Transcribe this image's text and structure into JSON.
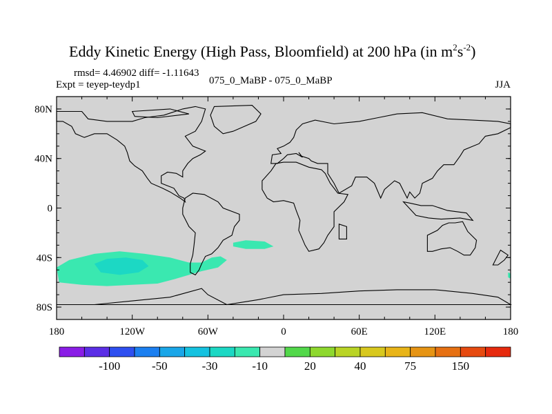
{
  "chart_data": {
    "type": "heatmap",
    "title": "Eddy Kinetic Energy (High Pass, Bloomfield) at 200 hPa (in m",
    "title_units": {
      "base1": "m",
      "exp1": "2",
      "base2": "s",
      "exp2": "-2",
      "close": ")"
    },
    "stats_line": "rmsd= 4.46902 diff= -1.11643",
    "expt_label": "Expt = teyep-teydp1",
    "center_label": "075_0_MaBP - 075_0_MaBP",
    "season_label": "JJA",
    "lat_ticks": [
      "80N",
      "40N",
      "0",
      "40S",
      "80S"
    ],
    "lat_values": [
      80,
      40,
      0,
      -40,
      -80
    ],
    "lon_ticks": [
      "180",
      "120W",
      "60W",
      "0",
      "60E",
      "120E",
      "180"
    ],
    "lon_values": [
      -180,
      -120,
      -60,
      0,
      60,
      120,
      180
    ],
    "xlim": [
      -180,
      180
    ],
    "ylim": [
      -90,
      90
    ],
    "background_color": "#d3d3d3",
    "colorbar": {
      "labels": [
        "-100",
        "-50",
        "-30",
        "-10",
        "20",
        "40",
        "75",
        "150"
      ],
      "colors": [
        "#8a1de6",
        "#5b2ee6",
        "#2e4ff0",
        "#1b7ff0",
        "#1aa6e8",
        "#15c2e0",
        "#1cd8c4",
        "#3ae8b0",
        "#d3d3d3",
        "#52d84a",
        "#8ed82e",
        "#b9d425",
        "#d8c81e",
        "#e8b418",
        "#e69414",
        "#e67012",
        "#e64a10",
        "#e62a0e"
      ]
    },
    "anomalies": [
      {
        "name": "south-pacific-anomaly",
        "level": "-10",
        "color": "#3ae8b0",
        "polygon": [
          [
            -180,
            -48
          ],
          [
            -170,
            -42
          ],
          [
            -150,
            -37
          ],
          [
            -130,
            -35
          ],
          [
            -110,
            -37
          ],
          [
            -90,
            -40
          ],
          [
            -75,
            -44
          ],
          [
            -65,
            -44
          ],
          [
            -57,
            -40
          ],
          [
            -50,
            -39
          ],
          [
            -45,
            -42
          ],
          [
            -52,
            -48
          ],
          [
            -65,
            -51
          ],
          [
            -85,
            -57
          ],
          [
            -100,
            -61
          ],
          [
            -120,
            -62
          ],
          [
            -140,
            -63
          ],
          [
            -160,
            -62
          ],
          [
            -178,
            -60
          ]
        ]
      },
      {
        "name": "south-pacific-core",
        "level": "-30",
        "color": "#1cd8c4",
        "polygon": [
          [
            -150,
            -45
          ],
          [
            -140,
            -41
          ],
          [
            -125,
            -40
          ],
          [
            -112,
            -42
          ],
          [
            -107,
            -47
          ],
          [
            -115,
            -52
          ],
          [
            -130,
            -54
          ],
          [
            -145,
            -52
          ]
        ]
      },
      {
        "name": "south-atlantic-anomaly",
        "level": "-10",
        "color": "#3ae8b0",
        "polygon": [
          [
            -40,
            -28
          ],
          [
            -30,
            -26
          ],
          [
            -15,
            -27
          ],
          [
            -8,
            -31
          ],
          [
            -15,
            -33
          ],
          [
            -30,
            -33
          ],
          [
            -40,
            -31
          ]
        ]
      },
      {
        "name": "indian-east-anomaly",
        "level": "-10",
        "color": "#3ae8b0",
        "polygon": [
          [
            178,
            -52
          ],
          [
            180,
            -53
          ],
          [
            180,
            -57
          ],
          [
            178,
            -56
          ]
        ]
      }
    ],
    "coastlines": [
      {
        "name": "north-america",
        "points": [
          [
            -180,
            78
          ],
          [
            -160,
            78
          ],
          [
            -155,
            72
          ],
          [
            -140,
            70
          ],
          [
            -120,
            70
          ],
          [
            -110,
            73
          ],
          [
            -95,
            75
          ],
          [
            -80,
            80
          ],
          [
            -70,
            82
          ],
          [
            -62,
            80
          ],
          [
            -65,
            70
          ],
          [
            -70,
            62
          ],
          [
            -78,
            58
          ],
          [
            -72,
            50
          ],
          [
            -62,
            46
          ],
          [
            -66,
            43
          ],
          [
            -72,
            40
          ],
          [
            -76,
            36
          ],
          [
            -80,
            30
          ],
          [
            -80,
            25
          ],
          [
            -85,
            28
          ],
          [
            -92,
            29
          ],
          [
            -97,
            26
          ],
          [
            -97,
            20
          ],
          [
            -92,
            18
          ],
          [
            -87,
            16
          ],
          [
            -83,
            10
          ],
          [
            -79,
            8
          ],
          [
            -78,
            5
          ],
          [
            -82,
            8
          ],
          [
            -90,
            13
          ],
          [
            -96,
            16
          ],
          [
            -105,
            20
          ],
          [
            -108,
            24
          ],
          [
            -112,
            30
          ],
          [
            -118,
            34
          ],
          [
            -122,
            38
          ],
          [
            -124,
            45
          ],
          [
            -126,
            50
          ],
          [
            -132,
            55
          ],
          [
            -140,
            60
          ],
          [
            -150,
            60
          ],
          [
            -158,
            57
          ],
          [
            -165,
            60
          ],
          [
            -168,
            66
          ],
          [
            -175,
            70
          ],
          [
            -180,
            70
          ]
        ]
      },
      {
        "name": "greenland",
        "points": [
          [
            -55,
            82
          ],
          [
            -25,
            83
          ],
          [
            -18,
            76
          ],
          [
            -22,
            70
          ],
          [
            -40,
            62
          ],
          [
            -48,
            60
          ],
          [
            -55,
            66
          ],
          [
            -58,
            75
          ]
        ]
      },
      {
        "name": "south-america",
        "points": [
          [
            -78,
            8
          ],
          [
            -72,
            12
          ],
          [
            -63,
            11
          ],
          [
            -52,
            5
          ],
          [
            -48,
            0
          ],
          [
            -35,
            -5
          ],
          [
            -35,
            -10
          ],
          [
            -39,
            -15
          ],
          [
            -41,
            -22
          ],
          [
            -48,
            -26
          ],
          [
            -52,
            -32
          ],
          [
            -57,
            -37
          ],
          [
            -62,
            -39
          ],
          [
            -65,
            -45
          ],
          [
            -67,
            -50
          ],
          [
            -70,
            -54
          ],
          [
            -74,
            -52
          ],
          [
            -74,
            -45
          ],
          [
            -72,
            -38
          ],
          [
            -71,
            -30
          ],
          [
            -70,
            -20
          ],
          [
            -75,
            -15
          ],
          [
            -80,
            -5
          ],
          [
            -80,
            0
          ]
        ]
      },
      {
        "name": "africa-eurasia",
        "points": [
          [
            -17,
            15
          ],
          [
            -17,
            22
          ],
          [
            -10,
            30
          ],
          [
            -6,
            36
          ],
          [
            0,
            37
          ],
          [
            10,
            37
          ],
          [
            20,
            33
          ],
          [
            30,
            31
          ],
          [
            33,
            28
          ],
          [
            37,
            20
          ],
          [
            43,
            12
          ],
          [
            51,
            11
          ],
          [
            48,
            5
          ],
          [
            40,
            -3
          ],
          [
            40,
            -15
          ],
          [
            35,
            -22
          ],
          [
            32,
            -28
          ],
          [
            28,
            -33
          ],
          [
            20,
            -35
          ],
          [
            17,
            -30
          ],
          [
            12,
            -18
          ],
          [
            13,
            -10
          ],
          [
            10,
            -2
          ],
          [
            8,
            4
          ],
          [
            0,
            6
          ],
          [
            -8,
            5
          ],
          [
            -13,
            8
          ]
        ]
      },
      {
        "name": "eurasia",
        "points": [
          [
            -10,
            36
          ],
          [
            -9,
            43
          ],
          [
            -2,
            44
          ],
          [
            -5,
            48
          ],
          [
            0,
            50
          ],
          [
            5,
            53
          ],
          [
            8,
            57
          ],
          [
            10,
            63
          ],
          [
            15,
            68
          ],
          [
            25,
            71
          ],
          [
            40,
            68
          ],
          [
            60,
            70
          ],
          [
            75,
            73
          ],
          [
            90,
            76
          ],
          [
            110,
            77
          ],
          [
            130,
            72
          ],
          [
            150,
            71
          ],
          [
            170,
            70
          ],
          [
            180,
            68
          ],
          [
            180,
            65
          ],
          [
            170,
            60
          ],
          [
            160,
            58
          ],
          [
            155,
            52
          ],
          [
            143,
            47
          ],
          [
            140,
            42
          ],
          [
            135,
            35
          ],
          [
            127,
            35
          ],
          [
            122,
            30
          ],
          [
            118,
            24
          ],
          [
            110,
            20
          ],
          [
            108,
            12
          ],
          [
            104,
            8
          ],
          [
            100,
            13
          ],
          [
            98,
            8
          ],
          [
            92,
            20
          ],
          [
            88,
            22
          ],
          [
            80,
            15
          ],
          [
            77,
            8
          ],
          [
            72,
            20
          ],
          [
            66,
            25
          ],
          [
            57,
            25
          ],
          [
            54,
            18
          ],
          [
            44,
            12
          ],
          [
            40,
            20
          ],
          [
            35,
            28
          ],
          [
            35,
            36
          ],
          [
            27,
            36
          ],
          [
            22,
            38
          ],
          [
            20,
            40
          ],
          [
            14,
            42
          ],
          [
            12,
            45
          ],
          [
            15,
            41
          ],
          [
            10,
            44
          ],
          [
            3,
            43
          ],
          [
            0,
            40
          ],
          [
            -5,
            36
          ]
        ]
      },
      {
        "name": "australia",
        "points": [
          [
            114,
            -22
          ],
          [
            114,
            -35
          ],
          [
            118,
            -35
          ],
          [
            125,
            -33
          ],
          [
            132,
            -32
          ],
          [
            138,
            -35
          ],
          [
            143,
            -38
          ],
          [
            148,
            -38
          ],
          [
            152,
            -32
          ],
          [
            153,
            -26
          ],
          [
            146,
            -19
          ],
          [
            142,
            -11
          ],
          [
            136,
            -12
          ],
          [
            131,
            -12
          ],
          [
            126,
            -14
          ],
          [
            122,
            -18
          ]
        ]
      },
      {
        "name": "antarctica",
        "points": [
          [
            -180,
            -78
          ],
          [
            -150,
            -78
          ],
          [
            -120,
            -75
          ],
          [
            -90,
            -72
          ],
          [
            -65,
            -65
          ],
          [
            -60,
            -70
          ],
          [
            -45,
            -78
          ],
          [
            -20,
            -74
          ],
          [
            0,
            -70
          ],
          [
            30,
            -69
          ],
          [
            60,
            -67
          ],
          [
            90,
            -66
          ],
          [
            120,
            -66
          ],
          [
            150,
            -69
          ],
          [
            170,
            -72
          ],
          [
            180,
            -78
          ]
        ]
      },
      {
        "name": "indonesia",
        "points": [
          [
            95,
            5
          ],
          [
            105,
            -6
          ],
          [
            115,
            -8
          ],
          [
            125,
            -9
          ],
          [
            140,
            -8
          ],
          [
            150,
            -10
          ],
          [
            145,
            -4
          ],
          [
            130,
            -2
          ],
          [
            118,
            2
          ],
          [
            109,
            2
          ],
          [
            100,
            4
          ]
        ]
      },
      {
        "name": "madagascar",
        "points": [
          [
            44,
            -13
          ],
          [
            50,
            -15
          ],
          [
            50,
            -25
          ],
          [
            44,
            -25
          ]
        ]
      },
      {
        "name": "new-zealand",
        "points": [
          [
            172,
            -34
          ],
          [
            178,
            -38
          ],
          [
            175,
            -42
          ],
          [
            170,
            -46
          ],
          [
            166,
            -46
          ]
        ]
      },
      {
        "name": "arctic-islands",
        "points": [
          [
            -120,
            78
          ],
          [
            -90,
            80
          ],
          [
            -75,
            76
          ],
          [
            -100,
            73
          ],
          [
            -118,
            74
          ]
        ]
      }
    ]
  }
}
